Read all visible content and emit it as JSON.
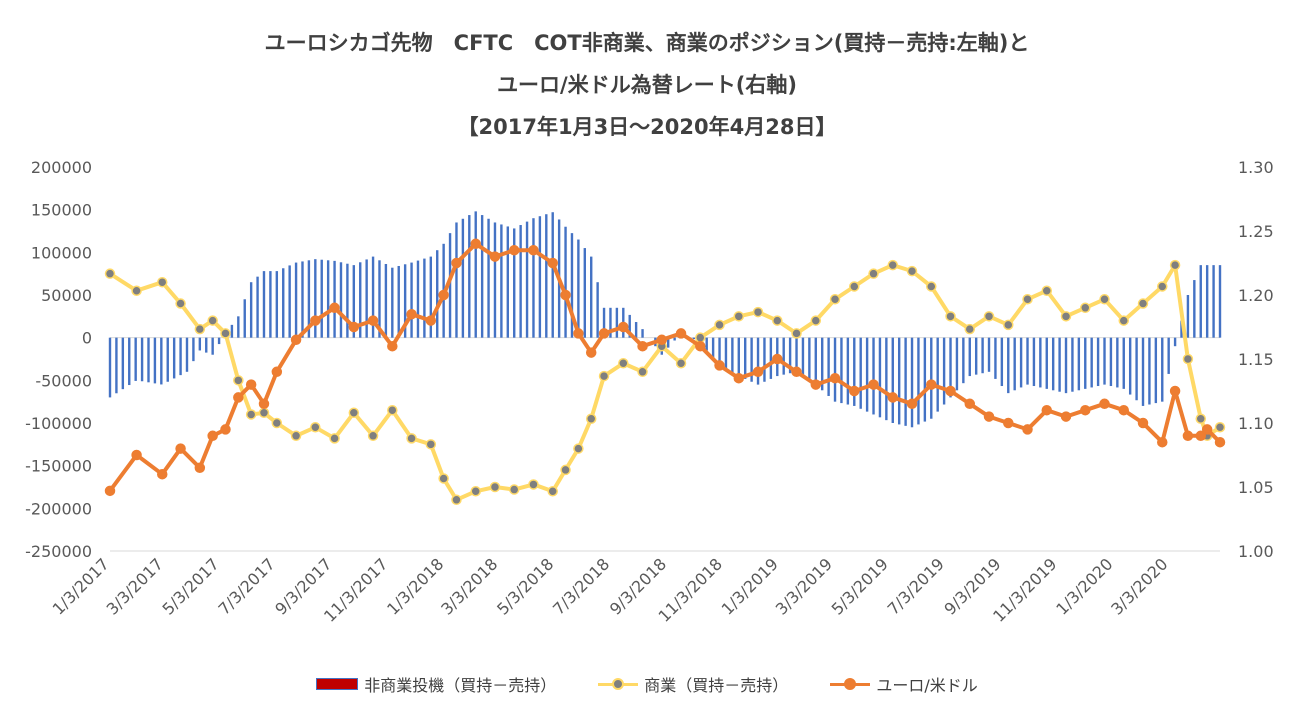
{
  "title": {
    "line1": "ユーロシカゴ先物　CFTC　COT非商業、商業のポジション(買持－売持:左軸)と",
    "line2": "ユーロ/米ドル為替レート(右軸)",
    "line3": "【2017年1月3日～2020年4月28日】"
  },
  "legend": {
    "bar_label": "非商業投機（買持－売持）",
    "line1_label": "商業（買持－売持）",
    "line2_label": "ユーロ/米ドル"
  },
  "colors": {
    "bars": "#4472c4",
    "legend_bar": "#c00000",
    "commercial_line": "#ffd966",
    "commercial_marker": "#7f7f7f",
    "eurusd_line": "#ed7d31"
  },
  "chart_data": {
    "type": "bar+line",
    "x_tick_labels": [
      "1/3/2017",
      "3/3/2017",
      "5/3/2017",
      "7/3/2017",
      "9/3/2017",
      "11/3/2017",
      "1/3/2018",
      "3/3/2018",
      "5/3/2018",
      "7/3/2018",
      "9/3/2018",
      "11/3/2018",
      "1/3/2019",
      "3/3/2019",
      "5/3/2019",
      "7/3/2019",
      "9/3/2019",
      "11/3/2019",
      "1/3/2020",
      "3/3/2020"
    ],
    "x_start": "2017-01-03",
    "x_end": "2020-04-28",
    "left_axis": {
      "min": -250000,
      "max": 200000,
      "step": 50000,
      "tick_labels": [
        "200000",
        "150000",
        "100000",
        "50000",
        "0",
        "-50000",
        "-100000",
        "-150000",
        "-200000",
        "-250000"
      ]
    },
    "right_axis": {
      "min": 1.0,
      "max": 1.3,
      "step": 0.05,
      "tick_labels": [
        "1.30",
        "1.25",
        "1.20",
        "1.15",
        "1.10",
        "1.05",
        "1.00"
      ]
    },
    "series": [
      {
        "name": "非商業投機（買持－売持）",
        "type": "bar",
        "axis": "left",
        "points": [
          [
            "2017-01-03",
            -70000
          ],
          [
            "2017-02-01",
            -50000
          ],
          [
            "2017-03-01",
            -55000
          ],
          [
            "2017-03-28",
            -40000
          ],
          [
            "2017-04-11",
            -15000
          ],
          [
            "2017-04-25",
            -20000
          ],
          [
            "2017-05-09",
            5000
          ],
          [
            "2017-05-23",
            25000
          ],
          [
            "2017-06-06",
            65000
          ],
          [
            "2017-06-20",
            78000
          ],
          [
            "2017-07-04",
            78000
          ],
          [
            "2017-07-25",
            88000
          ],
          [
            "2017-08-15",
            92000
          ],
          [
            "2017-09-05",
            90000
          ],
          [
            "2017-09-26",
            85000
          ],
          [
            "2017-10-17",
            95000
          ],
          [
            "2017-11-07",
            82000
          ],
          [
            "2017-11-28",
            88000
          ],
          [
            "2017-12-19",
            95000
          ],
          [
            "2018-01-02",
            110000
          ],
          [
            "2018-01-16",
            135000
          ],
          [
            "2018-02-06",
            148000
          ],
          [
            "2018-02-27",
            135000
          ],
          [
            "2018-03-20",
            128000
          ],
          [
            "2018-04-10",
            140000
          ],
          [
            "2018-05-01",
            147000
          ],
          [
            "2018-05-15",
            130000
          ],
          [
            "2018-05-29",
            115000
          ],
          [
            "2018-06-12",
            95000
          ],
          [
            "2018-06-26",
            35000
          ],
          [
            "2018-07-17",
            35000
          ],
          [
            "2018-08-07",
            10000
          ],
          [
            "2018-08-28",
            -20000
          ],
          [
            "2018-09-18",
            5000
          ],
          [
            "2018-10-09",
            -5000
          ],
          [
            "2018-10-30",
            -35000
          ],
          [
            "2018-11-20",
            -45000
          ],
          [
            "2018-12-11",
            -55000
          ],
          [
            "2019-01-01",
            -45000
          ],
          [
            "2019-01-22",
            -40000
          ],
          [
            "2019-02-12",
            -55000
          ],
          [
            "2019-03-05",
            -75000
          ],
          [
            "2019-03-26",
            -80000
          ],
          [
            "2019-04-16",
            -90000
          ],
          [
            "2019-05-07",
            -100000
          ],
          [
            "2019-05-28",
            -105000
          ],
          [
            "2019-06-18",
            -95000
          ],
          [
            "2019-07-09",
            -70000
          ],
          [
            "2019-07-30",
            -45000
          ],
          [
            "2019-08-20",
            -40000
          ],
          [
            "2019-09-10",
            -65000
          ],
          [
            "2019-10-01",
            -55000
          ],
          [
            "2019-10-22",
            -60000
          ],
          [
            "2019-11-12",
            -65000
          ],
          [
            "2019-12-03",
            -60000
          ],
          [
            "2019-12-24",
            -55000
          ],
          [
            "2020-01-14",
            -60000
          ],
          [
            "2020-02-04",
            -80000
          ],
          [
            "2020-02-25",
            -75000
          ],
          [
            "2020-03-10",
            -10000
          ],
          [
            "2020-03-24",
            50000
          ],
          [
            "2020-04-07",
            85000
          ],
          [
            "2020-04-28",
            85000
          ]
        ]
      },
      {
        "name": "商業（買持－売持）",
        "type": "line",
        "axis": "left",
        "points": [
          [
            "2017-01-03",
            75000
          ],
          [
            "2017-02-01",
            55000
          ],
          [
            "2017-03-01",
            65000
          ],
          [
            "2017-03-21",
            40000
          ],
          [
            "2017-04-11",
            10000
          ],
          [
            "2017-04-25",
            20000
          ],
          [
            "2017-05-09",
            5000
          ],
          [
            "2017-05-23",
            -50000
          ],
          [
            "2017-06-06",
            -90000
          ],
          [
            "2017-06-20",
            -88000
          ],
          [
            "2017-07-04",
            -100000
          ],
          [
            "2017-07-25",
            -115000
          ],
          [
            "2017-08-15",
            -105000
          ],
          [
            "2017-09-05",
            -118000
          ],
          [
            "2017-09-26",
            -88000
          ],
          [
            "2017-10-17",
            -115000
          ],
          [
            "2017-11-07",
            -85000
          ],
          [
            "2017-11-28",
            -118000
          ],
          [
            "2017-12-19",
            -125000
          ],
          [
            "2018-01-02",
            -165000
          ],
          [
            "2018-01-16",
            -190000
          ],
          [
            "2018-02-06",
            -180000
          ],
          [
            "2018-02-27",
            -175000
          ],
          [
            "2018-03-20",
            -178000
          ],
          [
            "2018-04-10",
            -172000
          ],
          [
            "2018-05-01",
            -180000
          ],
          [
            "2018-05-15",
            -155000
          ],
          [
            "2018-05-29",
            -130000
          ],
          [
            "2018-06-12",
            -95000
          ],
          [
            "2018-06-26",
            -45000
          ],
          [
            "2018-07-17",
            -30000
          ],
          [
            "2018-08-07",
            -40000
          ],
          [
            "2018-08-28",
            -10000
          ],
          [
            "2018-09-18",
            -30000
          ],
          [
            "2018-10-09",
            0
          ],
          [
            "2018-10-30",
            15000
          ],
          [
            "2018-11-20",
            25000
          ],
          [
            "2018-12-11",
            30000
          ],
          [
            "2019-01-01",
            20000
          ],
          [
            "2019-01-22",
            5000
          ],
          [
            "2019-02-12",
            20000
          ],
          [
            "2019-03-05",
            45000
          ],
          [
            "2019-03-26",
            60000
          ],
          [
            "2019-04-16",
            75000
          ],
          [
            "2019-05-07",
            85000
          ],
          [
            "2019-05-28",
            78000
          ],
          [
            "2019-06-18",
            60000
          ],
          [
            "2019-07-09",
            25000
          ],
          [
            "2019-07-30",
            10000
          ],
          [
            "2019-08-20",
            25000
          ],
          [
            "2019-09-10",
            15000
          ],
          [
            "2019-10-01",
            45000
          ],
          [
            "2019-10-22",
            55000
          ],
          [
            "2019-11-12",
            25000
          ],
          [
            "2019-12-03",
            35000
          ],
          [
            "2019-12-24",
            45000
          ],
          [
            "2020-01-14",
            20000
          ],
          [
            "2020-02-04",
            40000
          ],
          [
            "2020-02-25",
            60000
          ],
          [
            "2020-03-10",
            85000
          ],
          [
            "2020-03-24",
            -25000
          ],
          [
            "2020-04-07",
            -95000
          ],
          [
            "2020-04-14",
            -115000
          ],
          [
            "2020-04-28",
            -105000
          ]
        ]
      },
      {
        "name": "ユーロ/米ドル",
        "type": "line",
        "axis": "right",
        "points": [
          [
            "2017-01-03",
            1.047
          ],
          [
            "2017-02-01",
            1.075
          ],
          [
            "2017-03-01",
            1.06
          ],
          [
            "2017-03-21",
            1.08
          ],
          [
            "2017-04-11",
            1.065
          ],
          [
            "2017-04-25",
            1.09
          ],
          [
            "2017-05-09",
            1.095
          ],
          [
            "2017-05-23",
            1.12
          ],
          [
            "2017-06-06",
            1.13
          ],
          [
            "2017-06-20",
            1.115
          ],
          [
            "2017-07-04",
            1.14
          ],
          [
            "2017-07-25",
            1.165
          ],
          [
            "2017-08-15",
            1.18
          ],
          [
            "2017-09-05",
            1.19
          ],
          [
            "2017-09-26",
            1.175
          ],
          [
            "2017-10-17",
            1.18
          ],
          [
            "2017-11-07",
            1.16
          ],
          [
            "2017-11-28",
            1.185
          ],
          [
            "2017-12-19",
            1.18
          ],
          [
            "2018-01-02",
            1.2
          ],
          [
            "2018-01-16",
            1.225
          ],
          [
            "2018-02-06",
            1.24
          ],
          [
            "2018-02-27",
            1.23
          ],
          [
            "2018-03-20",
            1.235
          ],
          [
            "2018-04-10",
            1.235
          ],
          [
            "2018-05-01",
            1.225
          ],
          [
            "2018-05-15",
            1.2
          ],
          [
            "2018-05-29",
            1.17
          ],
          [
            "2018-06-12",
            1.155
          ],
          [
            "2018-06-26",
            1.17
          ],
          [
            "2018-07-17",
            1.175
          ],
          [
            "2018-08-07",
            1.16
          ],
          [
            "2018-08-28",
            1.165
          ],
          [
            "2018-09-18",
            1.17
          ],
          [
            "2018-10-09",
            1.16
          ],
          [
            "2018-10-30",
            1.145
          ],
          [
            "2018-11-20",
            1.135
          ],
          [
            "2018-12-11",
            1.14
          ],
          [
            "2019-01-01",
            1.15
          ],
          [
            "2019-01-22",
            1.14
          ],
          [
            "2019-02-12",
            1.13
          ],
          [
            "2019-03-05",
            1.135
          ],
          [
            "2019-03-26",
            1.125
          ],
          [
            "2019-04-16",
            1.13
          ],
          [
            "2019-05-07",
            1.12
          ],
          [
            "2019-05-28",
            1.115
          ],
          [
            "2019-06-18",
            1.13
          ],
          [
            "2019-07-09",
            1.125
          ],
          [
            "2019-07-30",
            1.115
          ],
          [
            "2019-08-20",
            1.105
          ],
          [
            "2019-09-10",
            1.1
          ],
          [
            "2019-10-01",
            1.095
          ],
          [
            "2019-10-22",
            1.11
          ],
          [
            "2019-11-12",
            1.105
          ],
          [
            "2019-12-03",
            1.11
          ],
          [
            "2019-12-24",
            1.115
          ],
          [
            "2020-01-14",
            1.11
          ],
          [
            "2020-02-04",
            1.1
          ],
          [
            "2020-02-25",
            1.085
          ],
          [
            "2020-03-10",
            1.125
          ],
          [
            "2020-03-24",
            1.09
          ],
          [
            "2020-04-07",
            1.09
          ],
          [
            "2020-04-14",
            1.095
          ],
          [
            "2020-04-28",
            1.085
          ]
        ]
      }
    ]
  }
}
